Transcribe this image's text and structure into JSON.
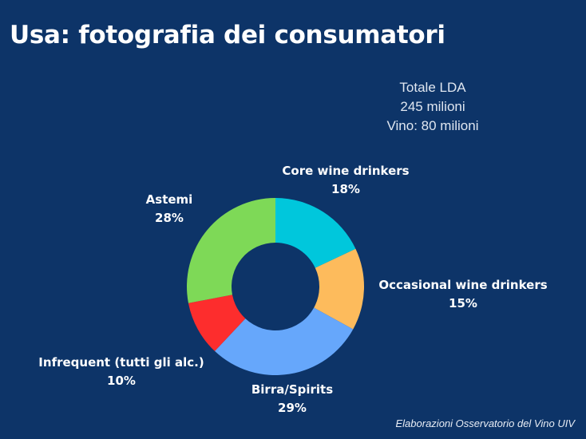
{
  "title": "Usa: fotografia dei consumatori",
  "totals": [
    "Totale LDA",
    "245 milioni",
    "Vino: 80 milioni"
  ],
  "source": "Elaborazioni Osservatorio del Vino UIV",
  "chart_data": {
    "type": "pie",
    "donut": true,
    "categories": [
      "Core wine drinkers",
      "Occasional wine drinkers",
      "Birra/Spirits",
      "Infrequent (tutti gli alc.)",
      "Astemi"
    ],
    "values": [
      18,
      15,
      29,
      10,
      28
    ],
    "labels": [
      "18%",
      "15%",
      "29%",
      "10%",
      "28%"
    ],
    "colors": [
      "#00c7dc",
      "#fdbb5c",
      "#66a7fb",
      "#fd2d2d",
      "#7ed957"
    ],
    "background": "#0d3468"
  }
}
